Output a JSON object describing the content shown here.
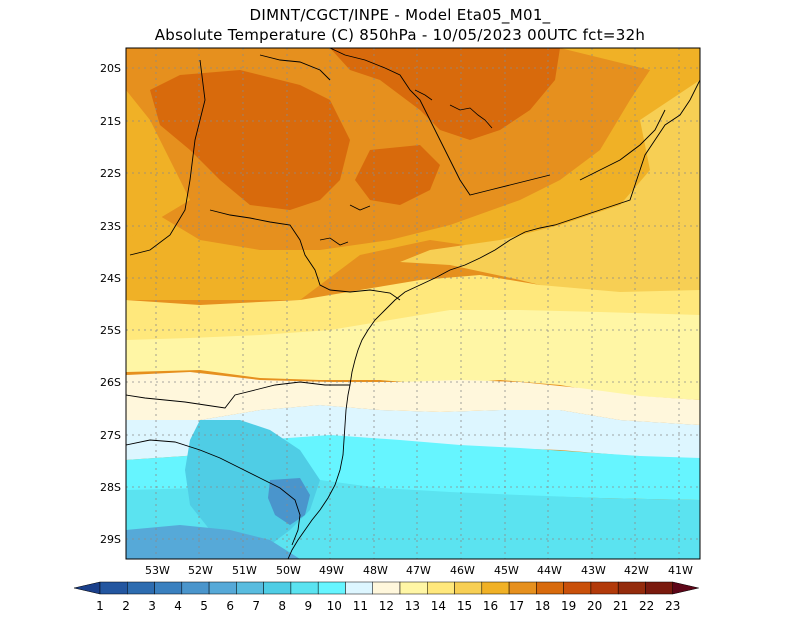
{
  "header": {
    "line1": "DIMNT/CGCT/INPE  -  Model Eta05_M01_",
    "line2": "Absolute Temperature (C) 850hPa -  10/05/2023 00UTC fct=32h"
  },
  "map": {
    "lat_labels": [
      "20S",
      "21S",
      "22S",
      "23S",
      "24S",
      "25S",
      "26S",
      "27S",
      "28S",
      "29S"
    ],
    "lon_labels": [
      "53W",
      "52W",
      "51W",
      "50W",
      "49W",
      "48W",
      "47W",
      "46W",
      "45W",
      "44W",
      "43W",
      "42W",
      "41W"
    ]
  },
  "colorbar": {
    "labels": [
      "1",
      "2",
      "3",
      "4",
      "5",
      "6",
      "7",
      "8",
      "9",
      "10",
      "11",
      "12",
      "13",
      "14",
      "15",
      "16",
      "17",
      "18",
      "19",
      "20",
      "21",
      "22",
      "23"
    ],
    "colors": [
      "#1a3f8a",
      "#2356a0",
      "#2d6cb0",
      "#3a80bf",
      "#4a95cc",
      "#56a9d8",
      "#59bcdf",
      "#4fcde5",
      "#5be3f0",
      "#66f5ff",
      "#ddf6ff",
      "#fff7dc",
      "#fff6a5",
      "#ffe87c",
      "#f7cf54",
      "#f0b126",
      "#e6901e",
      "#d86a0c",
      "#c9500a",
      "#b23a0a",
      "#942b0c",
      "#7a1a0e",
      "#5d0618"
    ]
  }
}
